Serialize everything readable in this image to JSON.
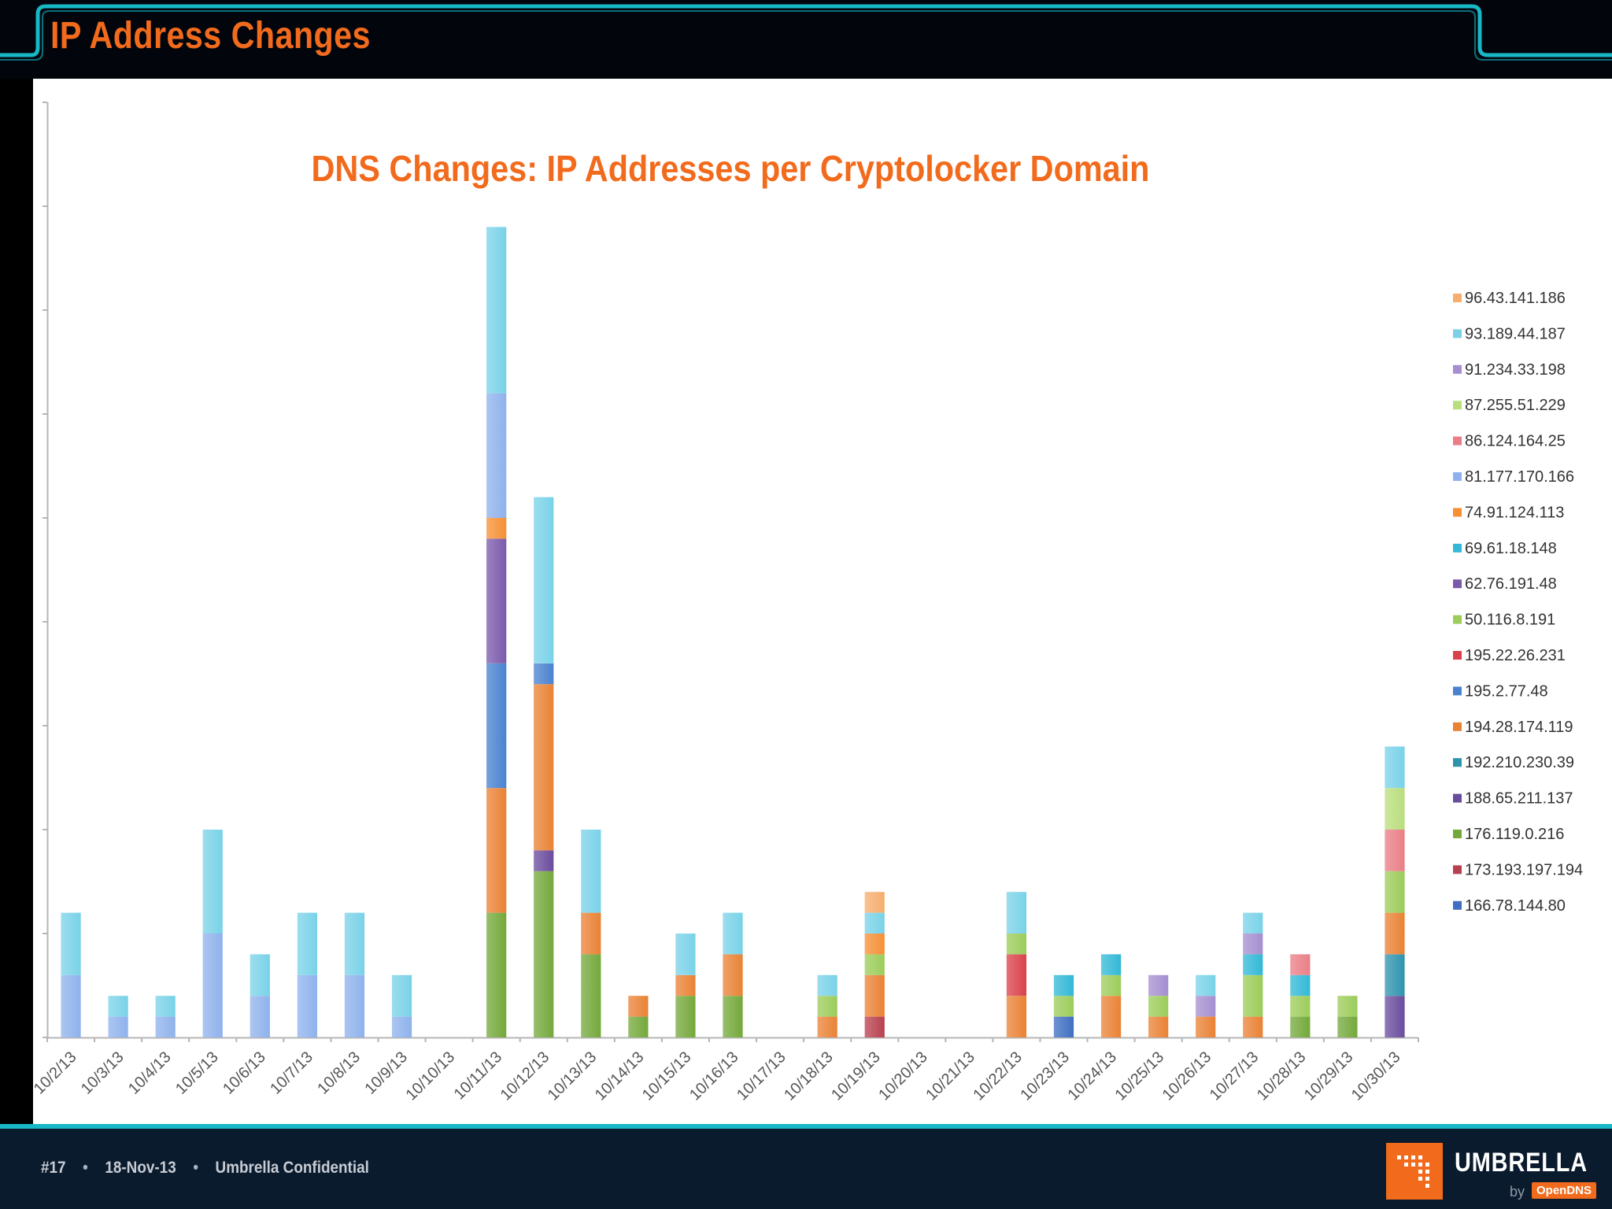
{
  "slide": {
    "title": "IP Address Changes"
  },
  "footer": {
    "slide_number": "#17",
    "date": "18-Nov-13",
    "confidentiality": "Umbrella Confidential",
    "separator": "•",
    "brand": "UMBRELLA",
    "brand_by": "by",
    "brand_sub": "OpenDNS"
  },
  "colors": {
    "accent_orange": "#f26b1d",
    "frame_teal": "#18b7c6",
    "footer_bg": "#0b1b2e"
  },
  "chart_data": {
    "type": "bar",
    "stacked": true,
    "title": "DNS Changes: IP Addresses per Cryptolocker Domain",
    "xlabel": "",
    "ylabel": "",
    "ylim": [
      0,
      9
    ],
    "y_ticks": [
      0,
      1,
      2,
      3,
      4,
      5,
      6,
      7,
      8,
      9
    ],
    "y_tick_labels_visible": false,
    "legend_position": "right",
    "categories": [
      "10/2/13",
      "10/3/13",
      "10/4/13",
      "10/5/13",
      "10/6/13",
      "10/7/13",
      "10/8/13",
      "10/9/13",
      "10/10/13",
      "10/11/13",
      "10/12/13",
      "10/13/13",
      "10/14/13",
      "10/15/13",
      "10/16/13",
      "10/17/13",
      "10/18/13",
      "10/19/13",
      "10/20/13",
      "10/21/13",
      "10/22/13",
      "10/23/13",
      "10/24/13",
      "10/25/13",
      "10/26/13",
      "10/27/13",
      "10/28/13",
      "10/29/13",
      "10/30/13"
    ],
    "series": [
      {
        "name": "166.78.144.80",
        "color": "#3f6fc2",
        "values": [
          0,
          0,
          0,
          0,
          0,
          0,
          0,
          0,
          0,
          0,
          0,
          0,
          0,
          0,
          0,
          0,
          0,
          0,
          0,
          0,
          0,
          0.2,
          0,
          0,
          0,
          0,
          0,
          0,
          0
        ]
      },
      {
        "name": "173.193.197.194",
        "color": "#b8404f",
        "values": [
          0,
          0,
          0,
          0,
          0,
          0,
          0,
          0,
          0,
          0,
          0,
          0,
          0,
          0,
          0,
          0,
          0,
          0.2,
          0,
          0,
          0,
          0,
          0,
          0,
          0,
          0,
          0,
          0,
          0
        ]
      },
      {
        "name": "176.119.0.216",
        "color": "#74a83b",
        "values": [
          0,
          0,
          0,
          0,
          0,
          0,
          0,
          0,
          0,
          1.2,
          1.6,
          0.8,
          0.2,
          0.4,
          0.4,
          0,
          0,
          0,
          0,
          0,
          0,
          0,
          0,
          0,
          0,
          0,
          0.2,
          0.2,
          0
        ]
      },
      {
        "name": "188.65.211.137",
        "color": "#6a4c9c",
        "values": [
          0,
          0,
          0,
          0,
          0,
          0,
          0,
          0,
          0,
          0,
          0.2,
          0,
          0,
          0,
          0,
          0,
          0,
          0,
          0,
          0,
          0,
          0,
          0,
          0,
          0,
          0,
          0,
          0,
          0.4
        ]
      },
      {
        "name": "192.210.230.39",
        "color": "#2e94ad",
        "values": [
          0,
          0,
          0,
          0,
          0,
          0,
          0,
          0,
          0,
          0,
          0,
          0,
          0,
          0,
          0,
          0,
          0,
          0,
          0,
          0,
          0,
          0,
          0,
          0,
          0,
          0,
          0,
          0,
          0.4
        ]
      },
      {
        "name": "194.28.174.119",
        "color": "#e98235",
        "values": [
          0,
          0,
          0,
          0,
          0,
          0,
          0,
          0,
          0,
          1.2,
          1.6,
          0.4,
          0.2,
          0.2,
          0.4,
          0,
          0.2,
          0.4,
          0,
          0,
          0.4,
          0,
          0.4,
          0.2,
          0.2,
          0.2,
          0,
          0,
          0.4
        ]
      },
      {
        "name": "195.2.77.48",
        "color": "#4a82cf",
        "values": [
          0,
          0,
          0,
          0,
          0,
          0,
          0,
          0,
          0,
          1.2,
          0.2,
          0,
          0,
          0,
          0,
          0,
          0,
          0,
          0,
          0,
          0,
          0,
          0,
          0,
          0,
          0,
          0,
          0,
          0
        ]
      },
      {
        "name": "195.22.26.231",
        "color": "#d9424b",
        "values": [
          0,
          0,
          0,
          0,
          0,
          0,
          0,
          0,
          0,
          0,
          0,
          0,
          0,
          0,
          0,
          0,
          0,
          0,
          0,
          0,
          0.4,
          0,
          0,
          0,
          0,
          0,
          0,
          0,
          0
        ]
      },
      {
        "name": "50.116.8.191",
        "color": "#9ccc5a",
        "values": [
          0,
          0,
          0,
          0,
          0,
          0,
          0,
          0,
          0,
          0,
          0,
          0,
          0,
          0,
          0,
          0,
          0.2,
          0.2,
          0,
          0,
          0.2,
          0.2,
          0.2,
          0.2,
          0,
          0.4,
          0.2,
          0.2,
          0.4
        ]
      },
      {
        "name": "62.76.191.48",
        "color": "#7b5aac",
        "values": [
          0,
          0,
          0,
          0,
          0,
          0,
          0,
          0,
          0,
          1.2,
          0,
          0,
          0,
          0,
          0,
          0,
          0,
          0,
          0,
          0,
          0,
          0,
          0,
          0,
          0,
          0,
          0,
          0,
          0
        ]
      },
      {
        "name": "69.61.18.148",
        "color": "#32b8d6",
        "values": [
          0,
          0,
          0,
          0,
          0,
          0,
          0,
          0,
          0,
          0,
          0,
          0,
          0,
          0,
          0,
          0,
          0,
          0,
          0,
          0,
          0,
          0.2,
          0.2,
          0,
          0,
          0.2,
          0.2,
          0,
          0
        ]
      },
      {
        "name": "74.91.124.113",
        "color": "#f59035",
        "values": [
          0,
          0,
          0,
          0,
          0,
          0,
          0,
          0,
          0,
          0.2,
          0,
          0,
          0,
          0,
          0,
          0,
          0,
          0.2,
          0,
          0,
          0,
          0,
          0,
          0,
          0,
          0,
          0,
          0,
          0
        ]
      },
      {
        "name": "81.177.170.166",
        "color": "#8fb2ec",
        "values": [
          0.6,
          0.2,
          0.2,
          1.0,
          0.4,
          0.6,
          0.6,
          0.2,
          0,
          1.2,
          0,
          0,
          0,
          0,
          0,
          0,
          0,
          0,
          0,
          0,
          0,
          0,
          0,
          0,
          0,
          0,
          0,
          0,
          0
        ]
      },
      {
        "name": "86.124.164.25",
        "color": "#ea7e86",
        "values": [
          0,
          0,
          0,
          0,
          0,
          0,
          0,
          0,
          0,
          0,
          0,
          0,
          0,
          0,
          0,
          0,
          0,
          0,
          0,
          0,
          0,
          0,
          0,
          0,
          0,
          0,
          0.2,
          0,
          0.4
        ]
      },
      {
        "name": "87.255.51.229",
        "color": "#b9de7c",
        "values": [
          0,
          0,
          0,
          0,
          0,
          0,
          0,
          0,
          0,
          0,
          0,
          0,
          0,
          0,
          0,
          0,
          0,
          0,
          0,
          0,
          0,
          0,
          0,
          0,
          0,
          0,
          0,
          0,
          0.4
        ]
      },
      {
        "name": "91.234.33.198",
        "color": "#a58fd0",
        "values": [
          0,
          0,
          0,
          0,
          0,
          0,
          0,
          0,
          0,
          0,
          0,
          0,
          0,
          0,
          0,
          0,
          0,
          0,
          0,
          0,
          0,
          0,
          0,
          0.2,
          0.2,
          0.2,
          0,
          0,
          0
        ]
      },
      {
        "name": "93.189.44.187",
        "color": "#79d2e8",
        "values": [
          0.6,
          0.2,
          0.2,
          1.0,
          0.4,
          0.6,
          0.6,
          0.4,
          0,
          1.6,
          1.6,
          0.8,
          0,
          0.4,
          0.4,
          0,
          0.2,
          0.2,
          0,
          0,
          0.4,
          0,
          0,
          0,
          0.2,
          0.2,
          0,
          0,
          0.4
        ]
      },
      {
        "name": "96.43.141.186",
        "color": "#f6ad6e",
        "values": [
          0,
          0,
          0,
          0,
          0,
          0,
          0,
          0,
          0,
          0,
          0,
          0,
          0,
          0,
          0,
          0,
          0,
          0.2,
          0,
          0,
          0,
          0,
          0,
          0,
          0,
          0,
          0,
          0,
          0
        ]
      }
    ]
  }
}
